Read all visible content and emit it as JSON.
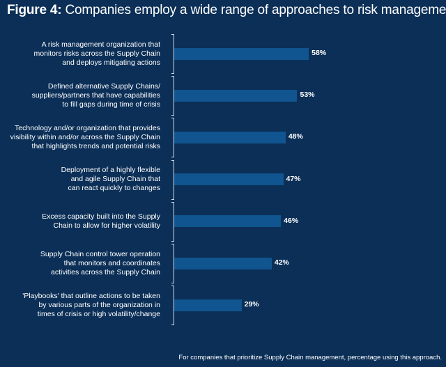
{
  "chart_data": {
    "type": "bar",
    "orientation": "horizontal",
    "title_prefix": "Figure 4:",
    "title": "Companies employ a wide range of approaches to risk management",
    "categories": [
      "A risk management organization that monitors risks across the Supply Chain and deploys mitigating actions",
      "Defined alternative Supply Chains/ suppliers/partners that have capabilities to fill gaps during time of crisis",
      "Technology and/or organization that provides visibility within and/or across the Supply Chain that highlights trends and potential risks",
      "Deployment of a highly flexible and agile Supply Chain that can react quickly to changes",
      "Excess capacity built into the Supply Chain to allow for higher volatility",
      "Supply Chain control tower operation that monitors and coordinates activities across the Supply Chain",
      "'Playbooks' that outline actions to be taken by various parts of the organization in times of crisis or high volatility/change"
    ],
    "label_lines": [
      [
        "A risk management organization that",
        "monitors risks across the Supply Chain",
        "and deploys mitigating actions"
      ],
      [
        "Defined alternative Supply Chains/",
        "suppliers/partners that have capabilities",
        "to fill gaps during time of crisis"
      ],
      [
        "Technology and/or organization that provides",
        "visibility within and/or across the Supply Chain",
        "that highlights trends and potential risks"
      ],
      [
        "Deployment of a highly flexible",
        "and agile Supply Chain that",
        "can react quickly to changes"
      ],
      [
        "Excess capacity built into the Supply",
        "Chain to allow for higher volatility"
      ],
      [
        "Supply Chain control tower operation",
        "that monitors and coordinates",
        "activities across the Supply Chain"
      ],
      [
        "'Playbooks' that outline actions to be taken",
        "by various parts of the organization in",
        "times of crisis or high volatility/change"
      ]
    ],
    "values": [
      58,
      53,
      48,
      47,
      46,
      42,
      29
    ],
    "data_labels": [
      "58%",
      "53%",
      "48%",
      "47%",
      "46%",
      "42%",
      "29%"
    ],
    "unit": "%",
    "grid": false,
    "colors": {
      "background": "#0b2f57",
      "bar": "#10558f",
      "text": "#ffffff"
    },
    "footnote": "For companies that prioritize Supply Chain management, percentage using this approach."
  }
}
